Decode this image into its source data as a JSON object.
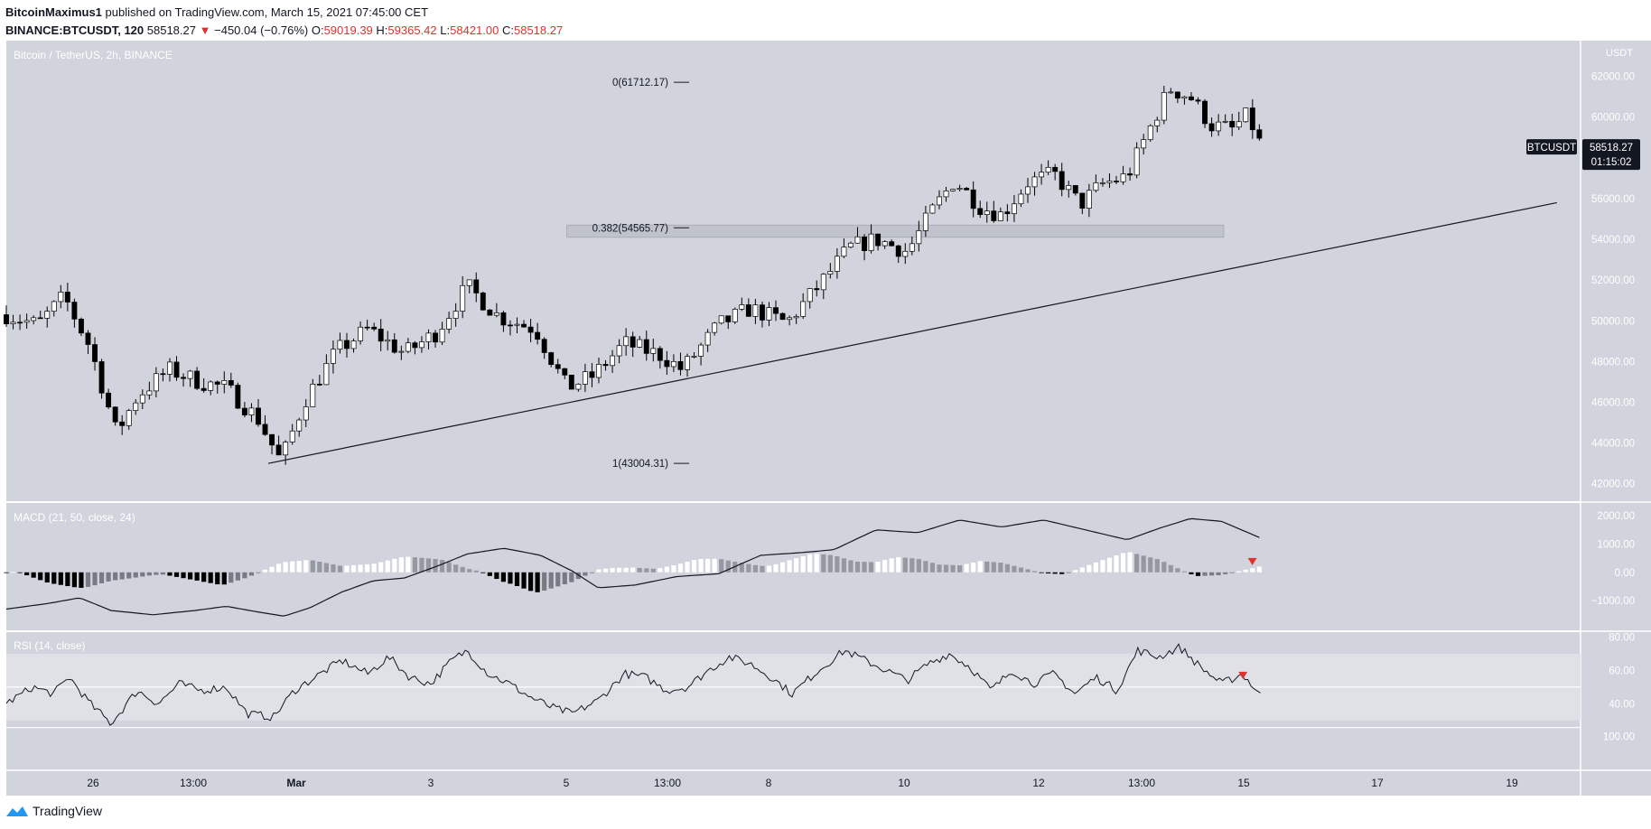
{
  "header": {
    "author": "BitcoinMaximus1",
    "published": " published on TradingView.com, March 15, 2021 07:45:00 CET",
    "symbol_line": "BINANCE:BTCUSDT, 120",
    "last": "58518.27",
    "change": "−450.04 (−0.76%)",
    "open_label": "O:",
    "open": "59019.39",
    "high_label": "H:",
    "high": "59365.42",
    "low_label": "L:",
    "low": "58421.00",
    "close_label": "C:",
    "close": "58518.27"
  },
  "footer": {
    "brand": "TradingView"
  },
  "colors": {
    "pane_bg": "#d1d4dc",
    "up_body": "#ffffff",
    "down_body": "#000000",
    "axis_bg": "#ffffff",
    "marker": "#e0312c"
  },
  "chart_data": [
    {
      "type": "candlestick",
      "title": "Bitcoin / TetherUS, 2h, BINANCE",
      "y_unit": "USDT",
      "ylim": [
        41500,
        63400
      ],
      "yticks": [
        "42000.00",
        "44000.00",
        "46000.00",
        "48000.00",
        "50000.00",
        "52000.00",
        "54000.00",
        "56000.00",
        "58000.00",
        "60000.00",
        "62000.00"
      ],
      "xticks": [
        "26",
        "13:00",
        "Mar",
        "3",
        "5",
        "13:00",
        "8",
        "10",
        "12",
        "13:00",
        "15",
        "17",
        "19"
      ],
      "price_label": {
        "symbol": "BTCUSDT",
        "price": "58518.27",
        "countdown": "01:15:02"
      },
      "fib_levels": [
        {
          "label": "0(61712.17)",
          "value": 61712.17
        },
        {
          "label": "0.382(54565.77)",
          "value": 54565.77
        },
        {
          "label": "1(43004.31)",
          "value": 43004.31
        }
      ],
      "support_zone": [
        54100,
        54700
      ],
      "trendline": {
        "from": {
          "bar": 250,
          "price": 43000
        },
        "to": {
          "bar": 1480,
          "price": 55800
        }
      },
      "keypoints": [
        [
          0,
          50300
        ],
        [
          30,
          49800
        ],
        [
          55,
          51200
        ],
        [
          80,
          48700
        ],
        [
          105,
          44500
        ],
        [
          125,
          46300
        ],
        [
          155,
          47600
        ],
        [
          185,
          47000
        ],
        [
          210,
          46700
        ],
        [
          240,
          45200
        ],
        [
          262,
          43100
        ],
        [
          285,
          46100
        ],
        [
          315,
          48500
        ],
        [
          345,
          49600
        ],
        [
          380,
          48400
        ],
        [
          410,
          49400
        ],
        [
          440,
          51700
        ],
        [
          470,
          50200
        ],
        [
          505,
          49600
        ],
        [
          535,
          46700
        ],
        [
          560,
          47300
        ],
        [
          590,
          48900
        ],
        [
          625,
          48300
        ],
        [
          645,
          47600
        ],
        [
          680,
          49800
        ],
        [
          710,
          50600
        ],
        [
          745,
          49900
        ],
        [
          775,
          51700
        ],
        [
          805,
          53600
        ],
        [
          830,
          54000
        ],
        [
          860,
          53400
        ],
        [
          885,
          55500
        ],
        [
          905,
          56900
        ],
        [
          930,
          55600
        ],
        [
          950,
          55200
        ],
        [
          975,
          56800
        ],
        [
          1000,
          57200
        ],
        [
          1025,
          55700
        ],
        [
          1045,
          56700
        ],
        [
          1070,
          57100
        ],
        [
          1090,
          59300
        ],
        [
          1110,
          61400
        ],
        [
          1130,
          61000
        ],
        [
          1150,
          59600
        ],
        [
          1170,
          59400
        ],
        [
          1185,
          60100
        ],
        [
          1198,
          58518
        ]
      ]
    },
    {
      "type": "macd",
      "title": "MACD (21, 50, close, 24)",
      "ylim": [
        -2050,
        2450
      ],
      "yticks": [
        "2000.00",
        "1000.00",
        "0.00",
        "−1000.00"
      ],
      "keypoints": [
        [
          0,
          -1300
        ],
        [
          40,
          -1100
        ],
        [
          70,
          -900
        ],
        [
          100,
          -1350
        ],
        [
          140,
          -1500
        ],
        [
          180,
          -1350
        ],
        [
          210,
          -1200
        ],
        [
          240,
          -1400
        ],
        [
          265,
          -1550
        ],
        [
          290,
          -1250
        ],
        [
          320,
          -700
        ],
        [
          350,
          -300
        ],
        [
          380,
          -200
        ],
        [
          410,
          200
        ],
        [
          440,
          650
        ],
        [
          475,
          850
        ],
        [
          510,
          600
        ],
        [
          540,
          50
        ],
        [
          565,
          -550
        ],
        [
          600,
          -450
        ],
        [
          640,
          -150
        ],
        [
          680,
          -50
        ],
        [
          720,
          600
        ],
        [
          760,
          700
        ],
        [
          790,
          800
        ],
        [
          830,
          1500
        ],
        [
          870,
          1400
        ],
        [
          910,
          1850
        ],
        [
          950,
          1600
        ],
        [
          990,
          1850
        ],
        [
          1030,
          1500
        ],
        [
          1070,
          1150
        ],
        [
          1100,
          1550
        ],
        [
          1130,
          1900
        ],
        [
          1160,
          1800
        ],
        [
          1198,
          1200
        ]
      ]
    },
    {
      "type": "rsi",
      "title": "RSI (14, close)",
      "ylim": [
        0,
        83
      ],
      "band": [
        30,
        70
      ],
      "midline": 50,
      "yticks": [
        "80.00",
        "60.00",
        "40.00",
        "100.00"
      ],
      "keypoints": [
        [
          0,
          40
        ],
        [
          25,
          50
        ],
        [
          45,
          46
        ],
        [
          60,
          56
        ],
        [
          80,
          40
        ],
        [
          100,
          28
        ],
        [
          125,
          48
        ],
        [
          145,
          40
        ],
        [
          165,
          52
        ],
        [
          185,
          48
        ],
        [
          210,
          50
        ],
        [
          230,
          34
        ],
        [
          255,
          32
        ],
        [
          275,
          48
        ],
        [
          300,
          58
        ],
        [
          320,
          66
        ],
        [
          345,
          58
        ],
        [
          365,
          68
        ],
        [
          385,
          56
        ],
        [
          405,
          52
        ],
        [
          425,
          66
        ],
        [
          440,
          72
        ],
        [
          460,
          58
        ],
        [
          480,
          52
        ],
        [
          500,
          44
        ],
        [
          520,
          38
        ],
        [
          540,
          34
        ],
        [
          565,
          42
        ],
        [
          590,
          58
        ],
        [
          610,
          56
        ],
        [
          630,
          48
        ],
        [
          650,
          50
        ],
        [
          670,
          60
        ],
        [
          690,
          68
        ],
        [
          710,
          64
        ],
        [
          730,
          56
        ],
        [
          750,
          46
        ],
        [
          775,
          60
        ],
        [
          800,
          72
        ],
        [
          820,
          66
        ],
        [
          840,
          60
        ],
        [
          860,
          54
        ],
        [
          880,
          64
        ],
        [
          900,
          70
        ],
        [
          920,
          62
        ],
        [
          940,
          48
        ],
        [
          960,
          60
        ],
        [
          980,
          52
        ],
        [
          1000,
          58
        ],
        [
          1020,
          46
        ],
        [
          1040,
          56
        ],
        [
          1060,
          48
        ],
        [
          1080,
          72
        ],
        [
          1100,
          68
        ],
        [
          1120,
          74
        ],
        [
          1140,
          62
        ],
        [
          1160,
          52
        ],
        [
          1180,
          58
        ],
        [
          1198,
          44
        ]
      ]
    }
  ]
}
